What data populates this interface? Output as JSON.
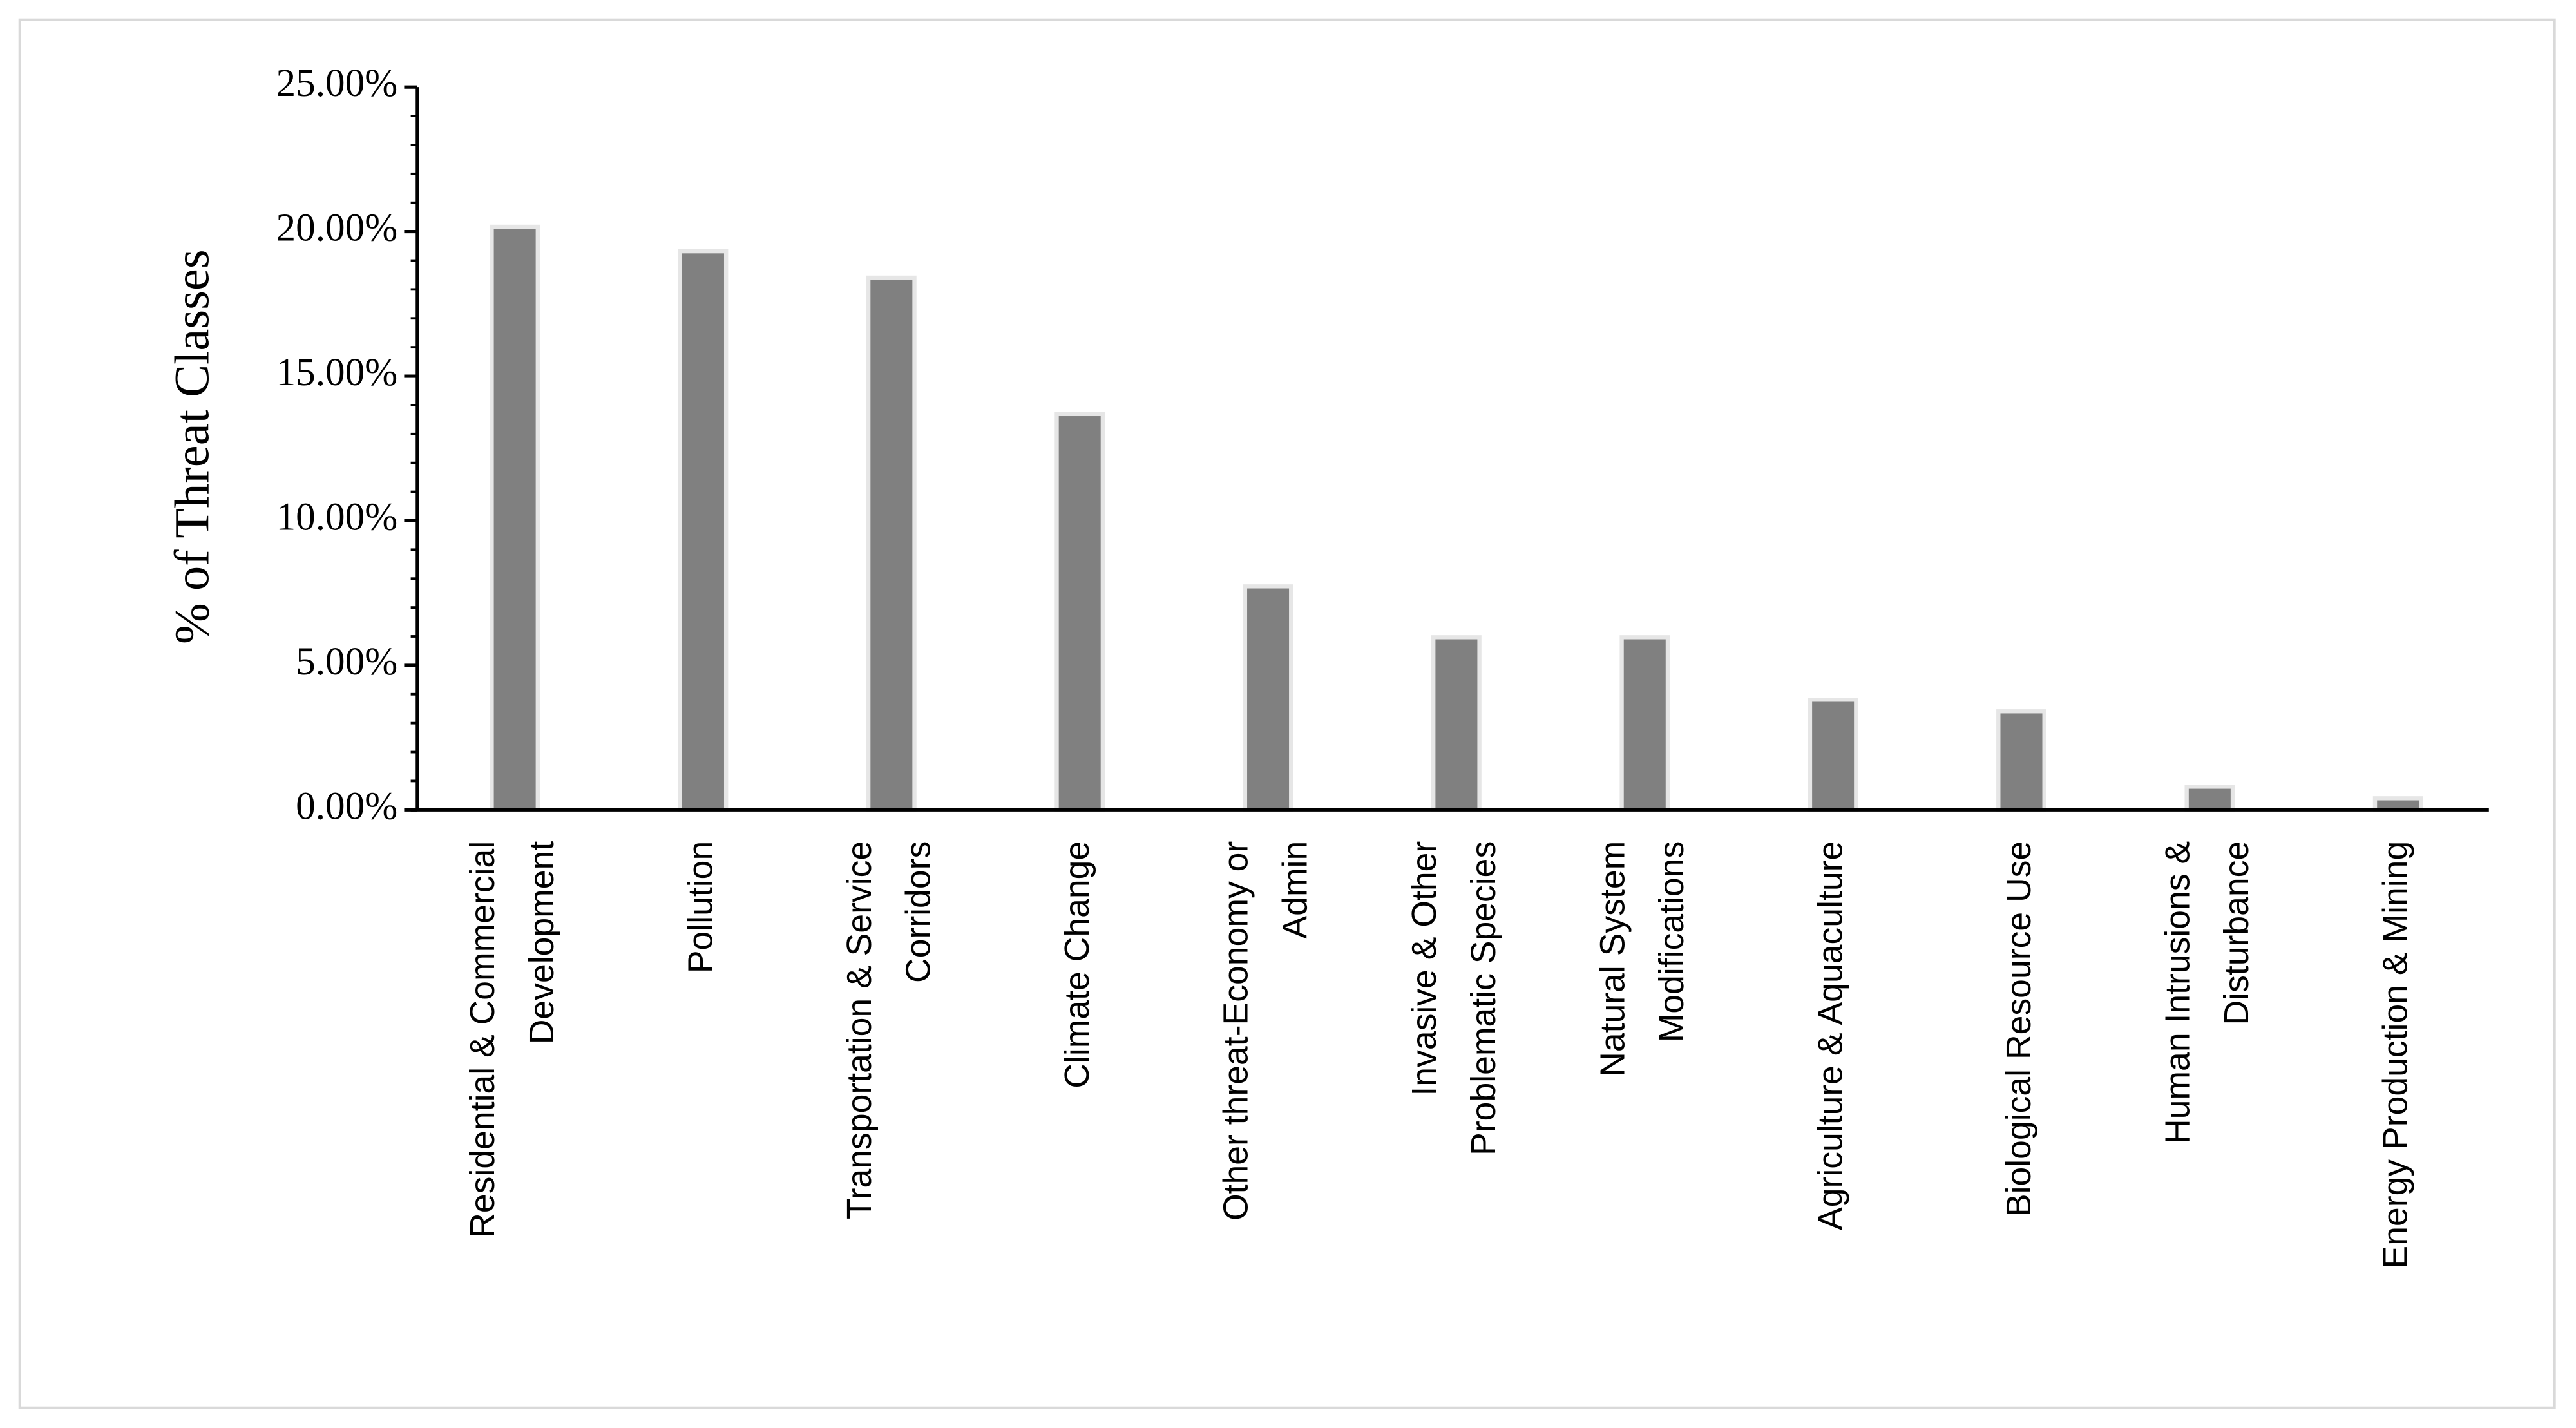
{
  "chart_data": {
    "type": "bar",
    "y_label": "% of Threat Classes",
    "categories": [
      "Residential & Commercial\nDevelopment",
      "Pollution",
      "Transportation & Service\nCorridors",
      "Climate Change",
      "Other threat-Economy or\nAdmin",
      "Invasive & Other\nProblematic Species",
      "Natural System\nModifications",
      "Agriculture & Aquaculture",
      "Biological Resource Use",
      "Human Intrusions &\nDisturbance",
      "Energy Production & Mining"
    ],
    "values": [
      20.17,
      19.32,
      18.41,
      13.69,
      7.73,
      5.97,
      5.97,
      3.81,
      3.41,
      0.8,
      0.4
    ],
    "color": "#808080",
    "ylim": [
      0,
      25
    ],
    "yticks": [
      {
        "value": 0,
        "label": "0.00%"
      },
      {
        "value": 5,
        "label": "5.00%"
      },
      {
        "value": 10,
        "label": "10.00%"
      },
      {
        "value": 15,
        "label": "15.00%"
      },
      {
        "value": 20,
        "label": "20.00%"
      },
      {
        "value": 25,
        "label": "25.00%"
      }
    ],
    "minor_yticks": [
      1,
      2,
      3,
      4,
      6,
      7,
      8,
      9,
      11,
      12,
      13,
      14,
      16,
      17,
      18,
      19,
      21,
      22,
      23,
      24
    ],
    "grid": false
  }
}
